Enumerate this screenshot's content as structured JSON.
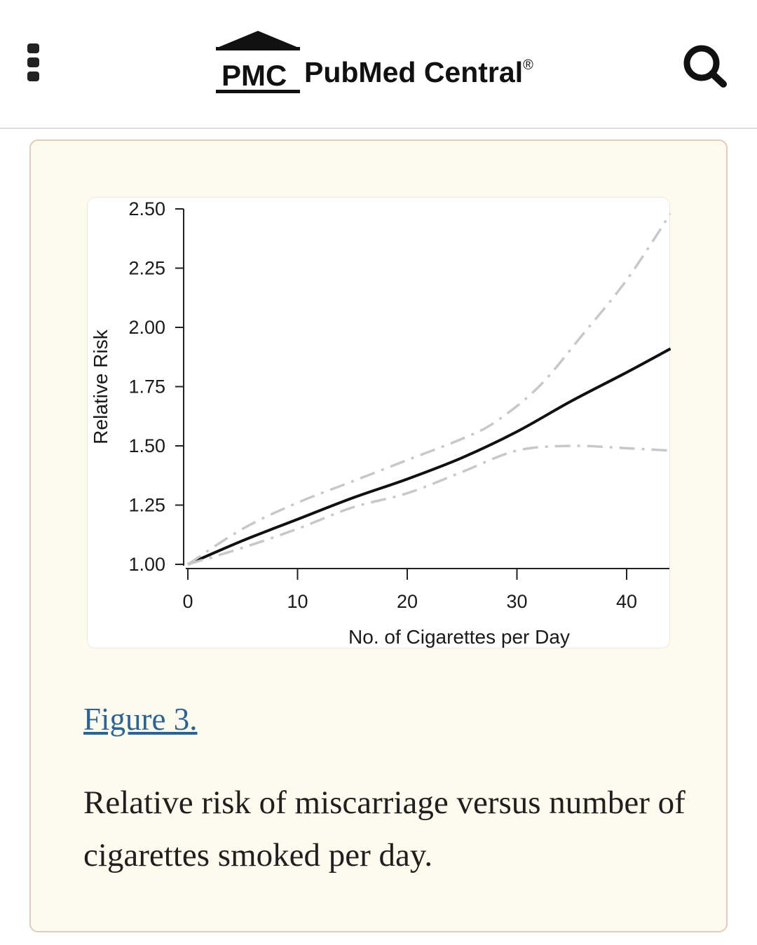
{
  "header": {
    "logo_abbrev": "PMC",
    "logo_name": "PubMed Central",
    "logo_mark": "®",
    "menu_icon": "kebab-menu-icon",
    "search_icon": "search-icon"
  },
  "figure": {
    "link_label": "Figure 3.",
    "caption": "Relative risk of miscarriage versus number of cigarettes smoked per day."
  },
  "colors": {
    "card_bg": "#fdfaee",
    "card_border": "#e4cbbb",
    "link": "#2a6496",
    "main_line": "#111111",
    "ci_line": "#c8c8c8"
  },
  "chart_data": {
    "type": "line",
    "xlabel": "No. of Cigarettes per Day",
    "ylabel": "Relative Risk",
    "xlim": [
      0,
      44
    ],
    "ylim": [
      1.0,
      2.5
    ],
    "x_ticks": [
      "0",
      "10",
      "20",
      "30",
      "40"
    ],
    "y_ticks": [
      "1.00",
      "1.25",
      "1.50",
      "1.75",
      "2.00",
      "2.25",
      "2.50"
    ],
    "grid": false,
    "series": [
      {
        "style": "solid",
        "x": [
          0,
          5,
          10,
          15,
          20,
          25,
          30,
          35,
          40,
          44
        ],
        "y": [
          1.0,
          1.1,
          1.19,
          1.28,
          1.36,
          1.45,
          1.56,
          1.69,
          1.81,
          1.91
        ]
      },
      {
        "style": "dash-dot",
        "x": [
          0,
          5,
          10,
          15,
          20,
          25,
          28,
          32,
          36,
          40,
          44
        ],
        "y": [
          1.0,
          1.15,
          1.26,
          1.35,
          1.44,
          1.53,
          1.6,
          1.75,
          1.97,
          2.2,
          2.48
        ]
      },
      {
        "style": "dash-dot",
        "x": [
          0,
          5,
          10,
          15,
          20,
          25,
          30,
          35,
          40,
          44
        ],
        "y": [
          1.0,
          1.07,
          1.15,
          1.24,
          1.3,
          1.39,
          1.48,
          1.5,
          1.49,
          1.48
        ]
      }
    ]
  }
}
